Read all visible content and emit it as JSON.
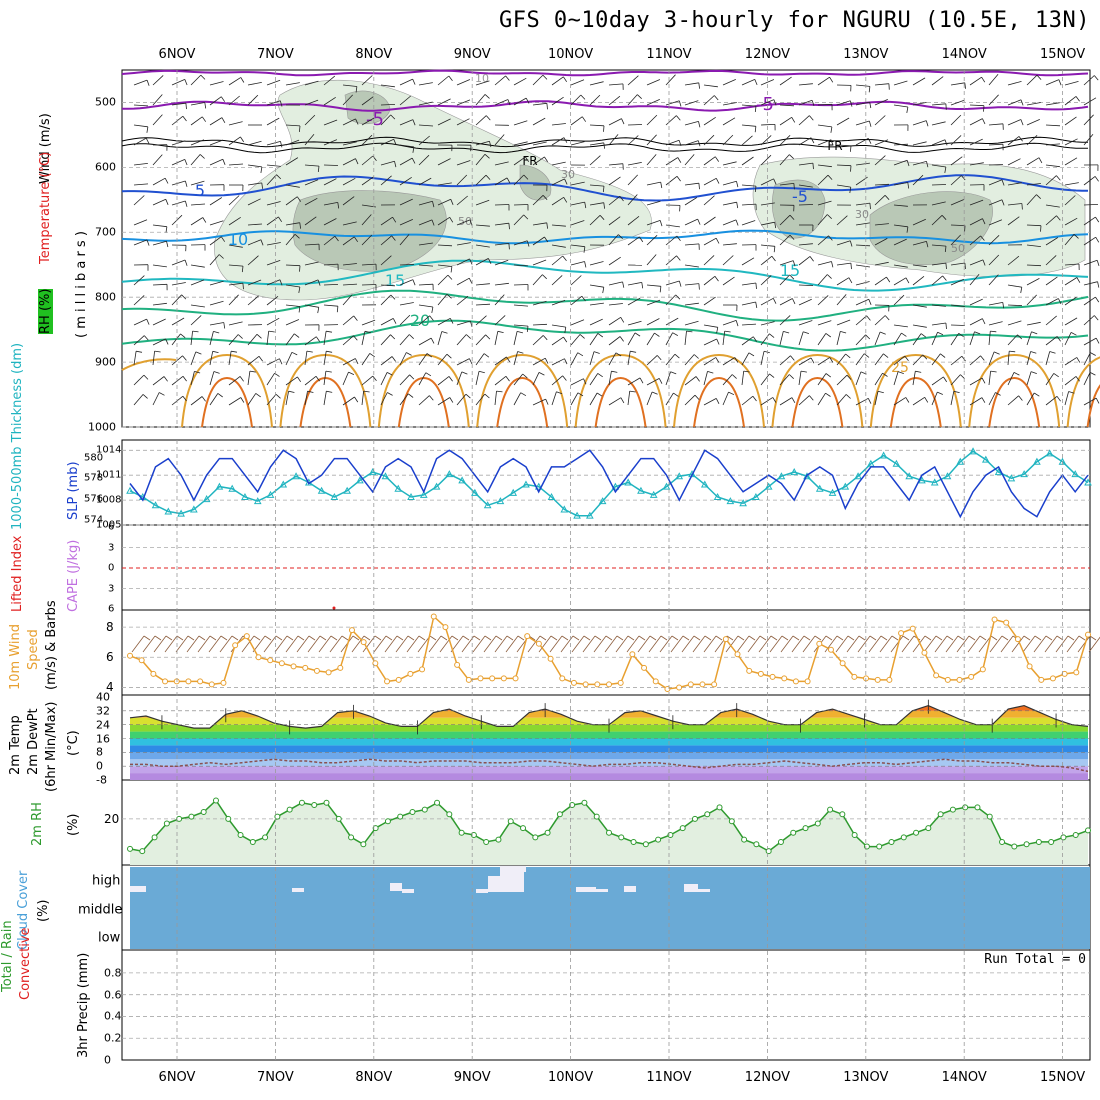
{
  "title": "GFS 0~10day 3-hourly for NGURU (10.5E, 13N)",
  "dates": [
    "6NOV",
    "7NOV",
    "8NOV",
    "9NOV",
    "10NOV",
    "11NOV",
    "12NOV",
    "13NOV",
    "14NOV",
    "15NOV"
  ],
  "panels": {
    "upper": {
      "label_wind": "Wind (m/s)",
      "label_temp": "Temperature (°C)",
      "label_rh": "RH (%)",
      "label_mb": "( m i l l i b a r s )",
      "pressure_ticks": [
        "500",
        "600",
        "700",
        "800",
        "900",
        "1000"
      ],
      "contour_labels": [
        "-5",
        "-5",
        "FR",
        "FR",
        "5",
        "-5",
        "10",
        "15",
        "15",
        "20",
        "25",
        "30",
        "30",
        "10",
        "50",
        "50"
      ]
    },
    "slp": {
      "label_thk": "1000-500mb Thickness (dm)",
      "label_slp": "SLP (mb)",
      "thk_ticks": [
        "580",
        "578",
        "576",
        "574"
      ],
      "slp_ticks": [
        "1014",
        "1011",
        "1008",
        "1005"
      ]
    },
    "cape": {
      "label_li": "Lifted Index",
      "label_cape": "CAPE (J/kg)",
      "ticks": [
        "6",
        "3",
        "0",
        "3",
        "6"
      ]
    },
    "wind10": {
      "label_wind": "10m Wind",
      "label_speed": "Speed",
      "label_units": "(m/s) & Barbs",
      "ticks": [
        "8",
        "6",
        "4"
      ]
    },
    "temp": {
      "label_temp": "2m Temp",
      "label_dew": "2m DewPt",
      "label_minmax": "(6hr Min/Max)",
      "label_units": "(°C)",
      "ticks": [
        "40",
        "32",
        "24",
        "16",
        "8",
        "0",
        "-8"
      ]
    },
    "rh": {
      "label": "2m RH",
      "label_units": "(%)",
      "ticks": [
        "20"
      ]
    },
    "cloud": {
      "label": "Cloud Cover",
      "label_units": "(%)",
      "levels": [
        "high",
        "middle",
        "low"
      ]
    },
    "precip": {
      "label_total": "Total / Rain",
      "label_conv": "Convective",
      "label_units": "3hr Precip (mm)",
      "ticks": [
        "0.8",
        "0.6",
        "0.4",
        "0.2",
        "0"
      ],
      "run_total": "Run Total = 0"
    }
  },
  "colors": {
    "slp": "#1a3fcc",
    "thickness": "#20b4c0",
    "wind10": "#e8a030",
    "rh": "#2e9a2e",
    "cloud_bg": "#6aaad6",
    "li": "#e02020",
    "temp_minus5": "#8a1ab0",
    "temp_5": "#2050d0",
    "temp_10": "#1890e0",
    "temp_15": "#20b8c0",
    "temp_20": "#20b080",
    "temp_25": "#e0a030"
  },
  "chart_data": [
    {
      "type": "line",
      "title": "1000-500mb Thickness / SLP",
      "x": [
        "5NOV21",
        "6NOV00",
        "6NOV03",
        "6NOV06",
        "6NOV09",
        "6NOV12",
        "6NOV15",
        "6NOV18",
        "6NOV21",
        "7NOV00",
        "7NOV03",
        "7NOV06",
        "7NOV09",
        "7NOV12",
        "7NOV15",
        "7NOV18",
        "7NOV21",
        "8NOV00",
        "8NOV03",
        "8NOV06",
        "8NOV09",
        "8NOV12",
        "8NOV15",
        "8NOV18",
        "8NOV21",
        "9NOV00",
        "9NOV03",
        "9NOV06",
        "9NOV09",
        "9NOV12",
        "9NOV15",
        "9NOV18",
        "9NOV21",
        "10NOV00",
        "10NOV03",
        "10NOV06",
        "10NOV09",
        "10NOV12",
        "10NOV15",
        "10NOV18",
        "10NOV21",
        "11NOV00",
        "11NOV03",
        "11NOV06",
        "11NOV09",
        "11NOV12",
        "11NOV15",
        "11NOV18",
        "11NOV21",
        "12NOV00",
        "12NOV03",
        "12NOV06",
        "12NOV09",
        "12NOV12",
        "12NOV15",
        "12NOV18",
        "12NOV21",
        "13NOV00",
        "13NOV03",
        "13NOV06",
        "13NOV09",
        "13NOV12",
        "13NOV15",
        "13NOV18",
        "13NOV21",
        "14NOV00",
        "14NOV03",
        "14NOV06",
        "14NOV09",
        "14NOV12",
        "14NOV15",
        "14NOV18",
        "14NOV21",
        "15NOV00",
        "15NOV03",
        "15NOV06"
      ],
      "series": [
        {
          "name": "SLP (mb)",
          "values": [
            1010,
            1008,
            1012,
            1013,
            1011,
            1008,
            1011,
            1013,
            1013,
            1011,
            1009,
            1012,
            1014,
            1013,
            1010,
            1011,
            1013,
            1013,
            1011,
            1009,
            1012,
            1013,
            1012,
            1009,
            1013,
            1014,
            1013,
            1011,
            1009,
            1012,
            1013,
            1012,
            1009,
            1012,
            1012,
            1013,
            1014,
            1012,
            1009,
            1011,
            1013,
            1013,
            1011,
            1008,
            1011,
            1014,
            1013,
            1011,
            1009,
            1010,
            1011,
            1010,
            1008,
            1011,
            1012,
            1011,
            1007,
            1010,
            1012,
            1012,
            1010,
            1008,
            1011,
            1012,
            1009,
            1006,
            1009,
            1011,
            1012,
            1009,
            1007,
            1006,
            1009,
            1011,
            1009,
            1011
          ]
        },
        {
          "name": "1000-500mb Thickness (dm)",
          "values": [
            576.8,
            576.2,
            575.4,
            574.8,
            574.6,
            575.0,
            576.0,
            577.2,
            577.0,
            576.2,
            575.8,
            576.4,
            577.4,
            578.2,
            577.6,
            576.8,
            576.2,
            576.8,
            577.8,
            578.6,
            578.2,
            577.0,
            576.2,
            576.4,
            577.2,
            578.4,
            577.8,
            576.6,
            575.4,
            575.8,
            576.6,
            577.4,
            577.2,
            576.2,
            575.0,
            574.4,
            574.4,
            575.8,
            577.2,
            577.6,
            576.8,
            576.4,
            577.2,
            578.2,
            578.4,
            577.4,
            576.2,
            575.8,
            575.6,
            576.2,
            577.2,
            578.2,
            578.6,
            578.2,
            577.0,
            576.6,
            577.2,
            578.2,
            579.4,
            580.2,
            579.4,
            578.2,
            577.8,
            577.6,
            578.2,
            579.6,
            580.6,
            579.8,
            578.6,
            578.0,
            578.4,
            579.6,
            580.4,
            579.6,
            578.4,
            577.6
          ]
        }
      ],
      "ylim_slp": [
        1005,
        1015
      ],
      "ylim_thickness": [
        573.5,
        581.5
      ]
    },
    {
      "type": "line",
      "title": "10m Wind Speed (m/s)",
      "series": [
        {
          "name": "10m Wind Speed",
          "values": [
            6.1,
            5.8,
            4.9,
            4.4,
            4.4,
            4.4,
            4.4,
            4.2,
            4.3,
            6.8,
            7.4,
            6.0,
            5.8,
            5.6,
            5.4,
            5.3,
            5.1,
            5.0,
            5.3,
            7.8,
            7.0,
            5.6,
            4.4,
            4.5,
            4.9,
            5.2,
            8.7,
            8.0,
            5.5,
            4.5,
            4.6,
            4.6,
            4.6,
            4.6,
            7.4,
            6.9,
            5.9,
            4.6,
            4.3,
            4.2,
            4.2,
            4.2,
            4.3,
            6.2,
            5.3,
            4.4,
            3.9,
            4.0,
            4.2,
            4.2,
            4.2,
            7.2,
            6.2,
            5.1,
            4.9,
            4.7,
            4.6,
            4.4,
            4.4,
            6.9,
            6.5,
            5.6,
            4.7,
            4.6,
            4.5,
            4.5,
            7.6,
            7.9,
            6.3,
            4.8,
            4.5,
            4.5,
            4.7,
            5.2,
            8.5,
            8.3,
            7.2,
            5.4,
            4.5,
            4.6,
            4.9,
            5.0,
            7.5
          ]
        }
      ],
      "ylim": [
        3.5,
        9
      ]
    },
    {
      "type": "area",
      "title": "2m Temp / 2m DewPt (6hr Min/Max) (°C)",
      "series": [
        {
          "name": "2m Temp",
          "values": [
            28,
            29,
            26,
            24,
            22,
            22,
            30,
            32,
            29,
            25,
            23,
            22,
            23,
            31,
            32,
            29,
            25,
            23,
            23,
            31,
            33,
            29,
            26,
            23,
            23,
            31,
            33,
            30,
            26,
            24,
            24,
            31,
            32,
            29,
            26,
            24,
            24,
            31,
            33,
            30,
            26,
            24,
            24,
            31,
            33,
            30,
            27,
            24,
            24,
            32,
            35,
            31,
            27,
            24,
            24,
            33,
            35,
            31,
            27,
            24,
            23
          ]
        },
        {
          "name": "2m DewPt",
          "values": [
            1,
            1,
            0,
            0,
            1,
            2,
            1,
            2,
            3,
            4,
            3,
            3,
            2,
            2,
            3,
            4,
            3,
            3,
            2,
            3,
            3,
            3,
            2,
            2,
            2,
            3,
            3,
            2,
            1,
            0,
            1,
            1,
            2,
            2,
            1,
            0,
            -1,
            0,
            1,
            1,
            2,
            3,
            2,
            1,
            0,
            1,
            2,
            2,
            1,
            2,
            3,
            4,
            3,
            3,
            2,
            2,
            1,
            0,
            0,
            -1,
            -3
          ]
        }
      ],
      "ylim": [
        -8,
        40
      ]
    },
    {
      "type": "area",
      "title": "2m RH (%)",
      "series": [
        {
          "name": "2m RH",
          "values": [
            7,
            6,
            12,
            18,
            20,
            21,
            23,
            28,
            20,
            13,
            10,
            12,
            21,
            24,
            27,
            26,
            27,
            20,
            12,
            9,
            16,
            19,
            21,
            23,
            24,
            27,
            22,
            14,
            13,
            10,
            11,
            19,
            16,
            12,
            14,
            22,
            26,
            27,
            21,
            14,
            12,
            10,
            9,
            11,
            13,
            16,
            20,
            22,
            25,
            19,
            11,
            9,
            6,
            10,
            14,
            16,
            18,
            24,
            22,
            13,
            8,
            8,
            10,
            12,
            14,
            16,
            22,
            24,
            25,
            25,
            21,
            10,
            8,
            9,
            10,
            10,
            12,
            13,
            15
          ]
        }
      ],
      "ylim": [
        0,
        36
      ]
    },
    {
      "type": "bar",
      "title": "3hr Precip (mm)",
      "series": [
        {
          "name": "Total / Rain",
          "values": [
            0
          ]
        },
        {
          "name": "Convective",
          "values": [
            0
          ]
        }
      ],
      "ylim": [
        0,
        0.9
      ]
    }
  ]
}
